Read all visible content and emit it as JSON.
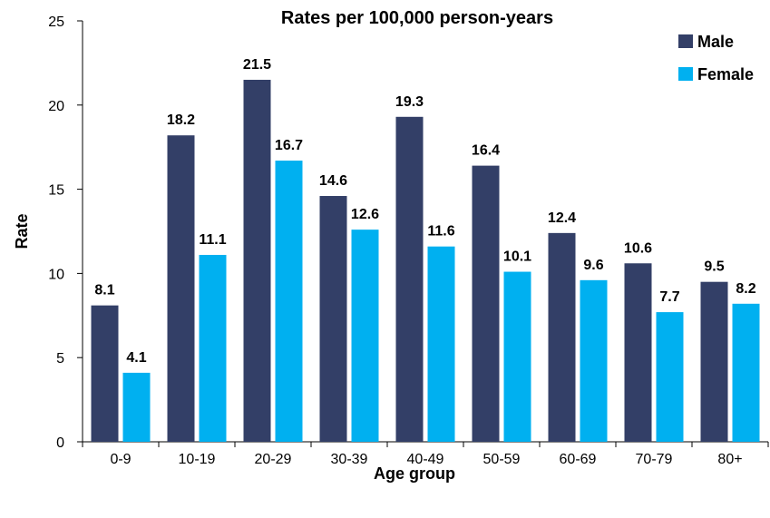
{
  "chart_data": {
    "type": "bar",
    "title": "Rates per 100,000 person-years",
    "xlabel": "Age group",
    "ylabel": "Rate",
    "categories": [
      "0-9",
      "10-19",
      "20-29",
      "30-39",
      "40-49",
      "50-59",
      "60-69",
      "70-79",
      "80+"
    ],
    "series": [
      {
        "name": "Male",
        "color": "#333F67",
        "values": [
          8.1,
          18.2,
          21.5,
          14.6,
          19.3,
          16.4,
          12.4,
          10.6,
          9.5
        ],
        "labels": [
          "8.1",
          "18.2",
          "21.5",
          "14.6",
          "19.3",
          "16.4",
          "12.4",
          "10.6",
          "9.5"
        ]
      },
      {
        "name": "Female",
        "color": "#00B0F0",
        "values": [
          4.1,
          11.1,
          16.7,
          12.6,
          11.6,
          10.1,
          9.6,
          7.7,
          8.2
        ],
        "labels": [
          "4.1",
          "11.1",
          "16.7",
          "12.6",
          "11.6",
          "10.1",
          "9.6",
          "7.7",
          "8.2"
        ]
      }
    ],
    "ylim": [
      0,
      25
    ],
    "yticks": [
      0,
      5,
      10,
      15,
      20,
      25
    ],
    "ytick_labels": [
      "0",
      "5",
      "10",
      "15",
      "20",
      "25"
    ],
    "grid": false,
    "legend_position": "top-right"
  }
}
